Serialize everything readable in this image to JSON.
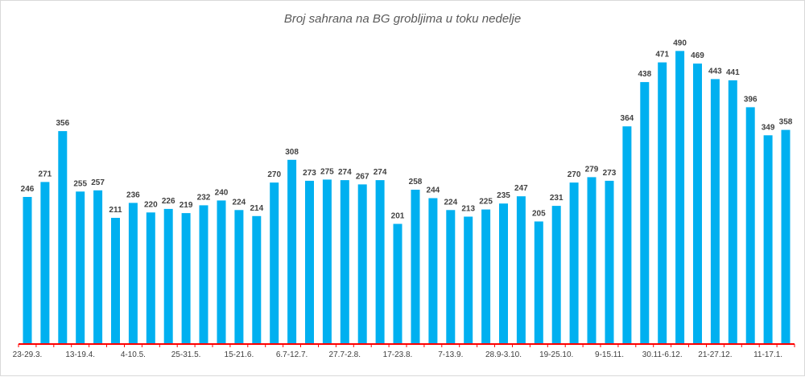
{
  "chart_data": {
    "type": "bar",
    "title": "Broj sahrana na BG grobljima u toku nedelje",
    "xlabel": "",
    "ylabel": "",
    "ylim": [
      0,
      500
    ],
    "grid": false,
    "legend": "none",
    "bar_color": "#00B0F0",
    "axis_color": "#FF0000",
    "label_color": "#404040",
    "categories": [
      "23-29.3.",
      "",
      "",
      "13-19.4.",
      "",
      "",
      "4-10.5.",
      "",
      "",
      "25-31.5.",
      "",
      "",
      "15-21.6.",
      "",
      "",
      "6.7-12.7.",
      "",
      "",
      "27.7-2.8.",
      "",
      "",
      "17-23.8.",
      "",
      "",
      "7-13.9.",
      "",
      "",
      "28.9-3.10.",
      "",
      "",
      "19-25.10.",
      "",
      "",
      "9-15.11.",
      "",
      "",
      "30.11-6.12.",
      "",
      "",
      "21-27.12.",
      "",
      "",
      "11-17.1.",
      ""
    ],
    "values": [
      246,
      271,
      356,
      255,
      257,
      211,
      236,
      220,
      226,
      219,
      232,
      240,
      224,
      214,
      270,
      308,
      273,
      275,
      274,
      267,
      274,
      201,
      258,
      244,
      224,
      213,
      225,
      235,
      247,
      205,
      231,
      270,
      279,
      273,
      364,
      438,
      471,
      490,
      469,
      443,
      441,
      396,
      349,
      358
    ]
  }
}
